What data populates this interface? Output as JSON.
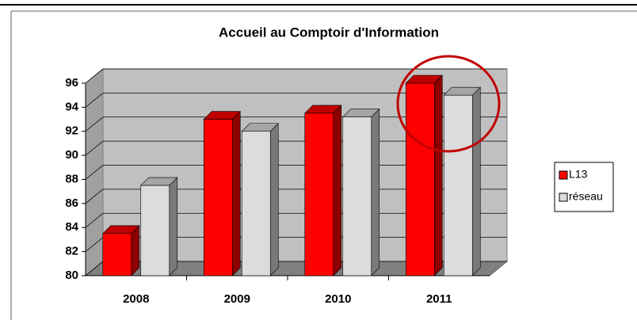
{
  "chart_data": {
    "type": "bar3d",
    "title": "Accueil au Comptoir d'Information",
    "categories": [
      "2008",
      "2009",
      "2010",
      "2011"
    ],
    "series": [
      {
        "name": "L13",
        "color": "#ff0000",
        "values": [
          83.5,
          93,
          93.5,
          96
        ]
      },
      {
        "name": "réseau",
        "color": "#dcdcdc",
        "values": [
          87.5,
          92,
          93.2,
          95
        ]
      }
    ],
    "ylim": [
      80,
      96
    ],
    "yticks": [
      80,
      82,
      84,
      86,
      88,
      90,
      92,
      94,
      96
    ],
    "grid": true,
    "legend": "right"
  }
}
